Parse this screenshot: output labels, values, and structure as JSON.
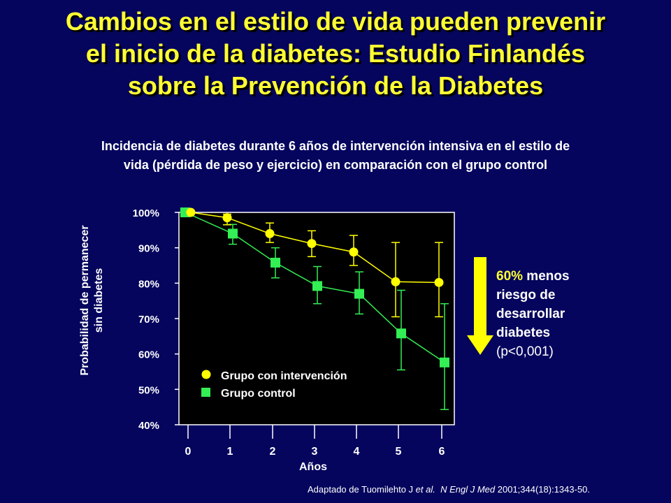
{
  "title": {
    "line1": "Cambios en el estilo de vida pueden prevenir",
    "line2": "el inicio de la diabetes: Estudio Finlandés",
    "line3": "sobre la Prevención de la Diabetes"
  },
  "subtitle": {
    "line1": "Incidencia de diabetes durante 6 años de intervención intensiva en el estilo de",
    "line2": "vida (pérdida de peso y ejercicio) en comparación con el grupo control"
  },
  "chart_data": {
    "type": "line",
    "xlabel": "Años",
    "ylabel_line1": "Probabilidad de permanecer",
    "ylabel_line2": "sin diabetes",
    "x_ticks": [
      "0",
      "1",
      "2",
      "3",
      "4",
      "5",
      "6"
    ],
    "y_ticks": [
      "40%",
      "50%",
      "60%",
      "70%",
      "80%",
      "90%",
      "100%"
    ],
    "ylim": [
      40,
      100
    ],
    "xlim": [
      0,
      6
    ],
    "legend_position": "bottom-left",
    "series": [
      {
        "name": "Grupo con intervención",
        "marker": "circle",
        "color": "#ffff00",
        "x": [
          0,
          1,
          2,
          3,
          4,
          5,
          6
        ],
        "values": [
          100,
          98.5,
          94,
          91.2,
          88.8,
          80.4,
          80.2
        ],
        "err_low": [
          100,
          96.5,
          91.5,
          87.5,
          85,
          70.5,
          70.5
        ],
        "err_high": [
          100,
          99.5,
          97,
          94.8,
          93.5,
          91.5,
          91.5
        ]
      },
      {
        "name": "Grupo control",
        "marker": "square",
        "color": "#33ee55",
        "x": [
          0,
          1,
          2,
          3,
          4,
          5,
          6
        ],
        "values": [
          100,
          94,
          85.8,
          79.2,
          77,
          65.8,
          57.6
        ],
        "err_low": [
          100,
          91,
          81.5,
          74.2,
          71.3,
          55.5,
          44.3
        ],
        "err_high": [
          100,
          96.6,
          90,
          84.7,
          83.2,
          78,
          74.2
        ]
      }
    ]
  },
  "annotation": {
    "percent": "60%",
    "line1_rest": " menos",
    "line2": "riesgo de",
    "line3": "desarrollar",
    "line4": "diabetes",
    "line5": "(p<0,001)"
  },
  "citation": {
    "pre": "Adaptado de Tuomilehto J ",
    "etal": "et al.",
    "mid": "  ",
    "journal": "N Engl J Med",
    "post": " 2001;344(18):1343-50."
  },
  "colors": {
    "background": "#05055e",
    "title": "#ffff33",
    "arrow": "#ffff00",
    "plot_bg": "#000000"
  }
}
